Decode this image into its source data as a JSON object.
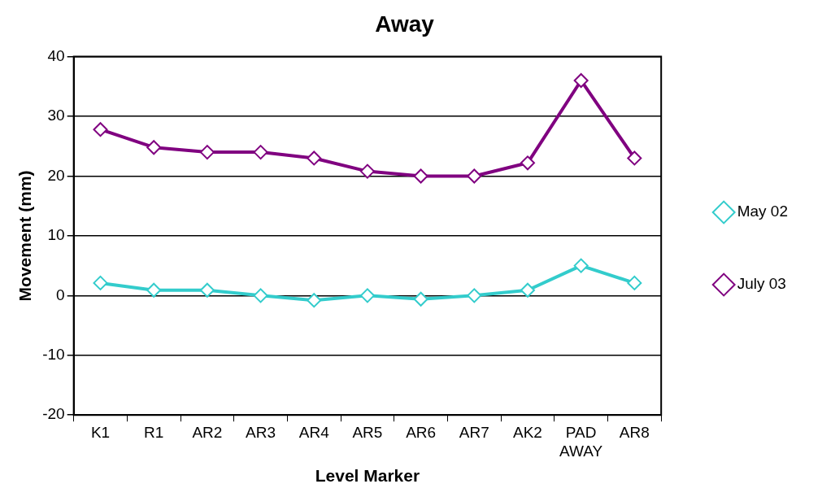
{
  "chart_data": {
    "type": "line",
    "title": "Away",
    "xlabel": "Level Marker",
    "ylabel": "Movement (mm)",
    "categories": [
      "K1",
      "R1",
      "AR2",
      "AR3",
      "AR4",
      "AR5",
      "AR6",
      "AR7",
      "AK2",
      "PAD AWAY",
      "AR8"
    ],
    "series": [
      {
        "name": "May 02",
        "color": "#33cccc",
        "values": [
          2.1,
          0.9,
          0.9,
          0,
          -0.8,
          0,
          -0.6,
          0,
          0.9,
          5,
          2.1
        ]
      },
      {
        "name": "July 03",
        "color": "#800080",
        "values": [
          27.8,
          24.8,
          24,
          24,
          23,
          20.8,
          20,
          20,
          22.2,
          36,
          23
        ]
      }
    ],
    "ylim": [
      -20,
      40
    ],
    "yticks": [
      -20,
      -10,
      0,
      10,
      20,
      30,
      40
    ],
    "grid": "y",
    "legend": "right",
    "marker": "diamond",
    "line_style": "solid"
  }
}
